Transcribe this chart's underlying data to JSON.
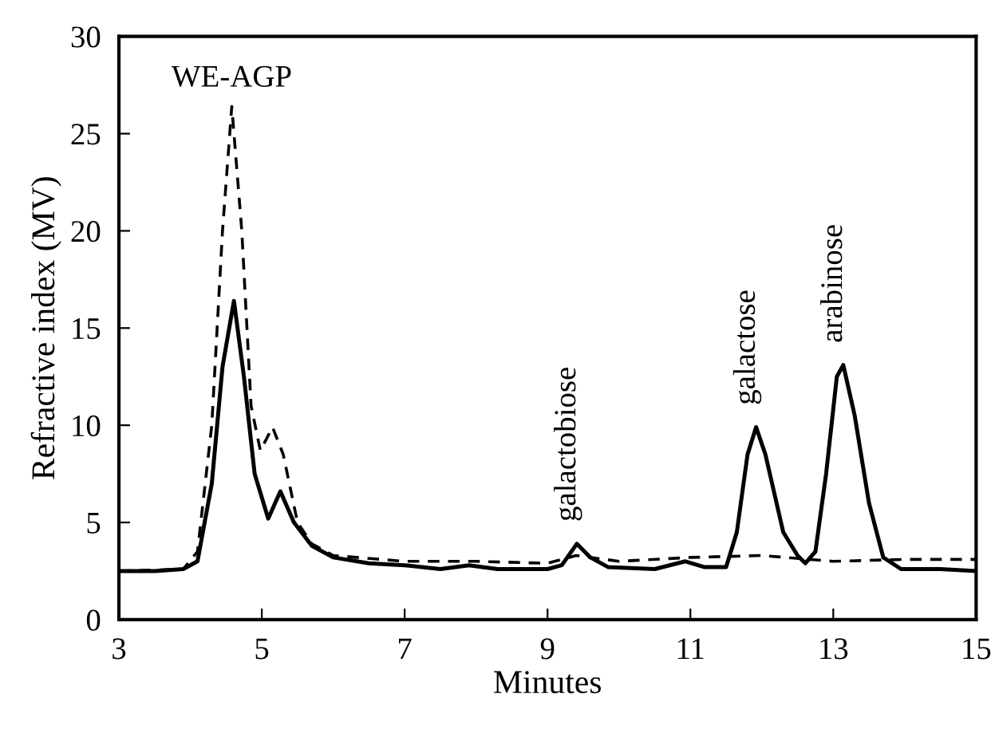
{
  "chart_data": {
    "type": "line",
    "xlabel": "Minutes",
    "ylabel": "Refractive index (MV)",
    "xlim": [
      3,
      15
    ],
    "ylim": [
      0,
      30
    ],
    "xticks": [
      3,
      5,
      7,
      9,
      11,
      13,
      15
    ],
    "yticks": [
      0,
      5,
      10,
      15,
      20,
      25,
      30
    ],
    "grid": false,
    "legend": false,
    "marker": "none",
    "series": [
      {
        "color": "#000000",
        "line_style": "solid",
        "x": [
          3,
          3.5,
          3.9,
          4.1,
          4.3,
          4.45,
          4.61,
          4.75,
          4.9,
          5.09,
          5.26,
          5.45,
          5.7,
          6.0,
          6.5,
          7.0,
          7.5,
          7.9,
          8.3,
          9.0,
          9.2,
          9.41,
          9.6,
          9.85,
          10.5,
          10.93,
          11.2,
          11.5,
          11.65,
          11.8,
          11.92,
          12.05,
          12.3,
          12.5,
          12.61,
          12.75,
          12.9,
          13.05,
          13.14,
          13.3,
          13.5,
          13.7,
          13.95,
          14.5,
          15
        ],
        "values": [
          2.5,
          2.5,
          2.6,
          3.0,
          7,
          13,
          16.4,
          12.5,
          7.5,
          5.2,
          6.6,
          5.0,
          3.8,
          3.2,
          2.9,
          2.8,
          2.6,
          2.8,
          2.6,
          2.6,
          2.8,
          3.9,
          3.2,
          2.7,
          2.6,
          3.0,
          2.7,
          2.7,
          4.5,
          8.5,
          9.9,
          8.5,
          4.5,
          3.3,
          2.9,
          3.5,
          7.5,
          12.5,
          13.1,
          10.5,
          6,
          3.2,
          2.6,
          2.6,
          2.5
        ]
      },
      {
        "color": "#000000",
        "line_style": "dashed",
        "x": [
          3,
          3.9,
          4.1,
          4.3,
          4.45,
          4.58,
          4.72,
          4.85,
          4.98,
          5.15,
          5.3,
          5.5,
          5.7,
          6.0,
          7,
          8,
          9,
          9.4,
          10,
          11,
          12,
          13,
          14,
          15
        ],
        "values": [
          2.5,
          2.6,
          3.5,
          10,
          20,
          26.4,
          20,
          11,
          8.7,
          9.9,
          8.5,
          5,
          3.9,
          3.3,
          3.0,
          3.0,
          2.9,
          3.3,
          3.0,
          3.2,
          3.3,
          3.0,
          3.1,
          3.1
        ]
      }
    ],
    "annotations": [
      {
        "text": "WE-AGP",
        "x": 4.58,
        "y": 26.4
      },
      {
        "text": "galactobiose",
        "x": 9.41,
        "y": 3.9
      },
      {
        "text": "galactose",
        "x": 11.92,
        "y": 9.9
      },
      {
        "text": "arabinose",
        "x": 13.14,
        "y": 13.1
      }
    ]
  }
}
